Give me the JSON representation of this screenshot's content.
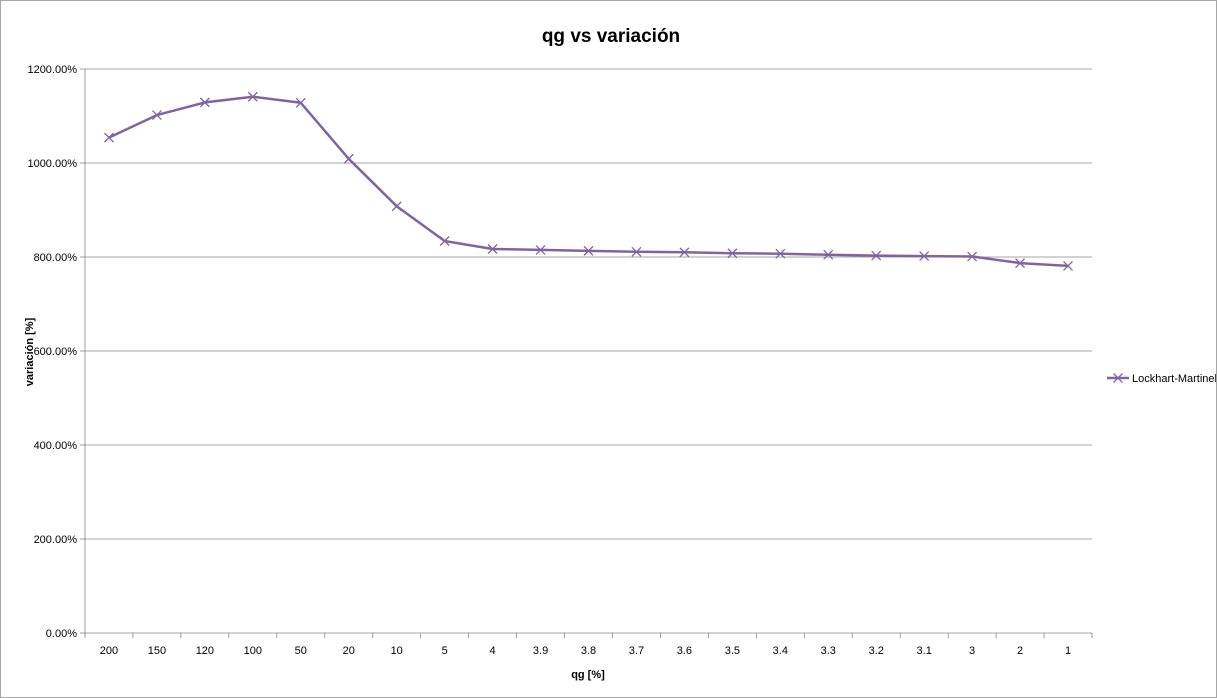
{
  "chart_data": {
    "type": "line",
    "title": "qg vs variación",
    "xlabel": "qg [%]",
    "ylabel": "variación [%]",
    "categories": [
      "200",
      "150",
      "120",
      "100",
      "50",
      "20",
      "10",
      "5",
      "4",
      "3.9",
      "3.8",
      "3.7",
      "3.6",
      "3.5",
      "3.4",
      "3.3",
      "3.2",
      "3.1",
      "3",
      "2",
      "1"
    ],
    "series": [
      {
        "name": "Lockhart-Martinelli",
        "values": [
          1054,
          1102,
          1129,
          1141,
          1128,
          1009,
          908,
          834,
          817,
          815,
          813,
          811,
          810,
          808,
          807,
          805,
          803,
          802,
          801,
          787,
          781
        ]
      }
    ],
    "ylim": [
      0,
      1200
    ],
    "yticks": [
      "0.00%",
      "200.00%",
      "400.00%",
      "600.00%",
      "800.00%",
      "1000.00%",
      "1200.00%"
    ],
    "grid": true,
    "legend_position": "right",
    "colors": {
      "series": "#8064a2",
      "gridline": "#868686",
      "axis": "#868686"
    },
    "marker": "x"
  }
}
